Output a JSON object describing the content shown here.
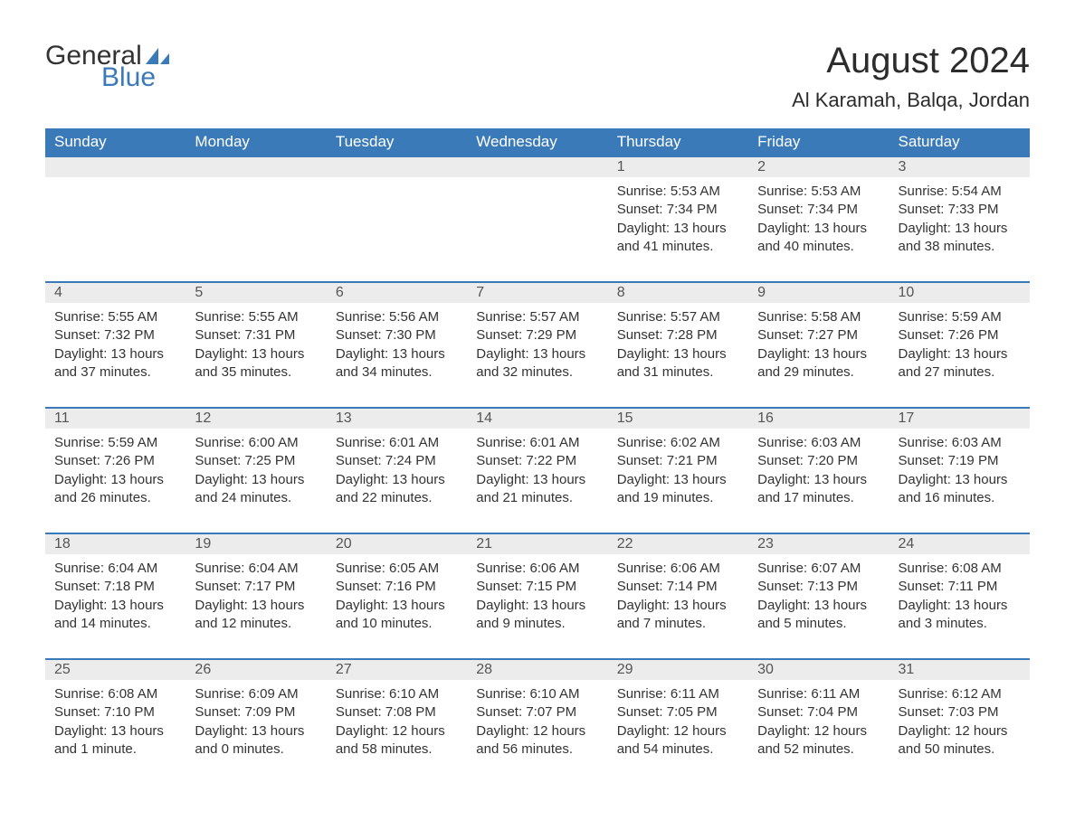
{
  "brand": {
    "word1": "General",
    "word2": "Blue",
    "sail_color": "#3a7ab8"
  },
  "title": "August 2024",
  "location": "Al Karamah, Balqa, Jordan",
  "colors": {
    "header_bg": "#3a7ab8",
    "header_text": "#ffffff",
    "daynum_bg": "#ececec",
    "daynum_text": "#555555",
    "body_text": "#333333",
    "row_border": "#3a7ab8",
    "page_bg": "#ffffff"
  },
  "fonts": {
    "title_size_pt": 30,
    "location_size_pt": 17,
    "dow_size_pt": 13,
    "daynum_size_pt": 12,
    "body_size_pt": 11
  },
  "days_of_week": [
    "Sunday",
    "Monday",
    "Tuesday",
    "Wednesday",
    "Thursday",
    "Friday",
    "Saturday"
  ],
  "labels": {
    "sunrise": "Sunrise:",
    "sunset": "Sunset:",
    "daylight": "Daylight:"
  },
  "weeks": [
    [
      null,
      null,
      null,
      null,
      {
        "n": "1",
        "sunrise": "5:53 AM",
        "sunset": "7:34 PM",
        "daylight": "13 hours and 41 minutes."
      },
      {
        "n": "2",
        "sunrise": "5:53 AM",
        "sunset": "7:34 PM",
        "daylight": "13 hours and 40 minutes."
      },
      {
        "n": "3",
        "sunrise": "5:54 AM",
        "sunset": "7:33 PM",
        "daylight": "13 hours and 38 minutes."
      }
    ],
    [
      {
        "n": "4",
        "sunrise": "5:55 AM",
        "sunset": "7:32 PM",
        "daylight": "13 hours and 37 minutes."
      },
      {
        "n": "5",
        "sunrise": "5:55 AM",
        "sunset": "7:31 PM",
        "daylight": "13 hours and 35 minutes."
      },
      {
        "n": "6",
        "sunrise": "5:56 AM",
        "sunset": "7:30 PM",
        "daylight": "13 hours and 34 minutes."
      },
      {
        "n": "7",
        "sunrise": "5:57 AM",
        "sunset": "7:29 PM",
        "daylight": "13 hours and 32 minutes."
      },
      {
        "n": "8",
        "sunrise": "5:57 AM",
        "sunset": "7:28 PM",
        "daylight": "13 hours and 31 minutes."
      },
      {
        "n": "9",
        "sunrise": "5:58 AM",
        "sunset": "7:27 PM",
        "daylight": "13 hours and 29 minutes."
      },
      {
        "n": "10",
        "sunrise": "5:59 AM",
        "sunset": "7:26 PM",
        "daylight": "13 hours and 27 minutes."
      }
    ],
    [
      {
        "n": "11",
        "sunrise": "5:59 AM",
        "sunset": "7:26 PM",
        "daylight": "13 hours and 26 minutes."
      },
      {
        "n": "12",
        "sunrise": "6:00 AM",
        "sunset": "7:25 PM",
        "daylight": "13 hours and 24 minutes."
      },
      {
        "n": "13",
        "sunrise": "6:01 AM",
        "sunset": "7:24 PM",
        "daylight": "13 hours and 22 minutes."
      },
      {
        "n": "14",
        "sunrise": "6:01 AM",
        "sunset": "7:22 PM",
        "daylight": "13 hours and 21 minutes."
      },
      {
        "n": "15",
        "sunrise": "6:02 AM",
        "sunset": "7:21 PM",
        "daylight": "13 hours and 19 minutes."
      },
      {
        "n": "16",
        "sunrise": "6:03 AM",
        "sunset": "7:20 PM",
        "daylight": "13 hours and 17 minutes."
      },
      {
        "n": "17",
        "sunrise": "6:03 AM",
        "sunset": "7:19 PM",
        "daylight": "13 hours and 16 minutes."
      }
    ],
    [
      {
        "n": "18",
        "sunrise": "6:04 AM",
        "sunset": "7:18 PM",
        "daylight": "13 hours and 14 minutes."
      },
      {
        "n": "19",
        "sunrise": "6:04 AM",
        "sunset": "7:17 PM",
        "daylight": "13 hours and 12 minutes."
      },
      {
        "n": "20",
        "sunrise": "6:05 AM",
        "sunset": "7:16 PM",
        "daylight": "13 hours and 10 minutes."
      },
      {
        "n": "21",
        "sunrise": "6:06 AM",
        "sunset": "7:15 PM",
        "daylight": "13 hours and 9 minutes."
      },
      {
        "n": "22",
        "sunrise": "6:06 AM",
        "sunset": "7:14 PM",
        "daylight": "13 hours and 7 minutes."
      },
      {
        "n": "23",
        "sunrise": "6:07 AM",
        "sunset": "7:13 PM",
        "daylight": "13 hours and 5 minutes."
      },
      {
        "n": "24",
        "sunrise": "6:08 AM",
        "sunset": "7:11 PM",
        "daylight": "13 hours and 3 minutes."
      }
    ],
    [
      {
        "n": "25",
        "sunrise": "6:08 AM",
        "sunset": "7:10 PM",
        "daylight": "13 hours and 1 minute."
      },
      {
        "n": "26",
        "sunrise": "6:09 AM",
        "sunset": "7:09 PM",
        "daylight": "13 hours and 0 minutes."
      },
      {
        "n": "27",
        "sunrise": "6:10 AM",
        "sunset": "7:08 PM",
        "daylight": "12 hours and 58 minutes."
      },
      {
        "n": "28",
        "sunrise": "6:10 AM",
        "sunset": "7:07 PM",
        "daylight": "12 hours and 56 minutes."
      },
      {
        "n": "29",
        "sunrise": "6:11 AM",
        "sunset": "7:05 PM",
        "daylight": "12 hours and 54 minutes."
      },
      {
        "n": "30",
        "sunrise": "6:11 AM",
        "sunset": "7:04 PM",
        "daylight": "12 hours and 52 minutes."
      },
      {
        "n": "31",
        "sunrise": "6:12 AM",
        "sunset": "7:03 PM",
        "daylight": "12 hours and 50 minutes."
      }
    ]
  ]
}
